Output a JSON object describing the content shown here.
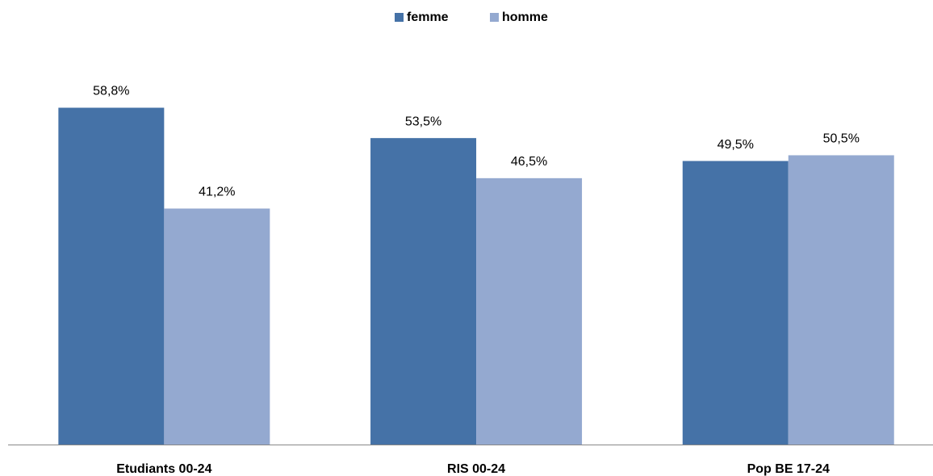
{
  "chart_data": {
    "type": "bar",
    "categories": [
      "Etudiants 00-24",
      "RIS 00-24",
      "Pop BE 17-24"
    ],
    "series": [
      {
        "name": "femme",
        "color": "#4572a7",
        "values": [
          58.8,
          53.5,
          49.5
        ],
        "value_labels": [
          "58,8%",
          "53,5%",
          "49,5%"
        ]
      },
      {
        "name": "homme",
        "color": "#94a9d0",
        "values": [
          41.2,
          46.5,
          50.5
        ],
        "value_labels": [
          "41,2%",
          "46,5%",
          "50,5%"
        ]
      }
    ],
    "legend": "top"
  }
}
